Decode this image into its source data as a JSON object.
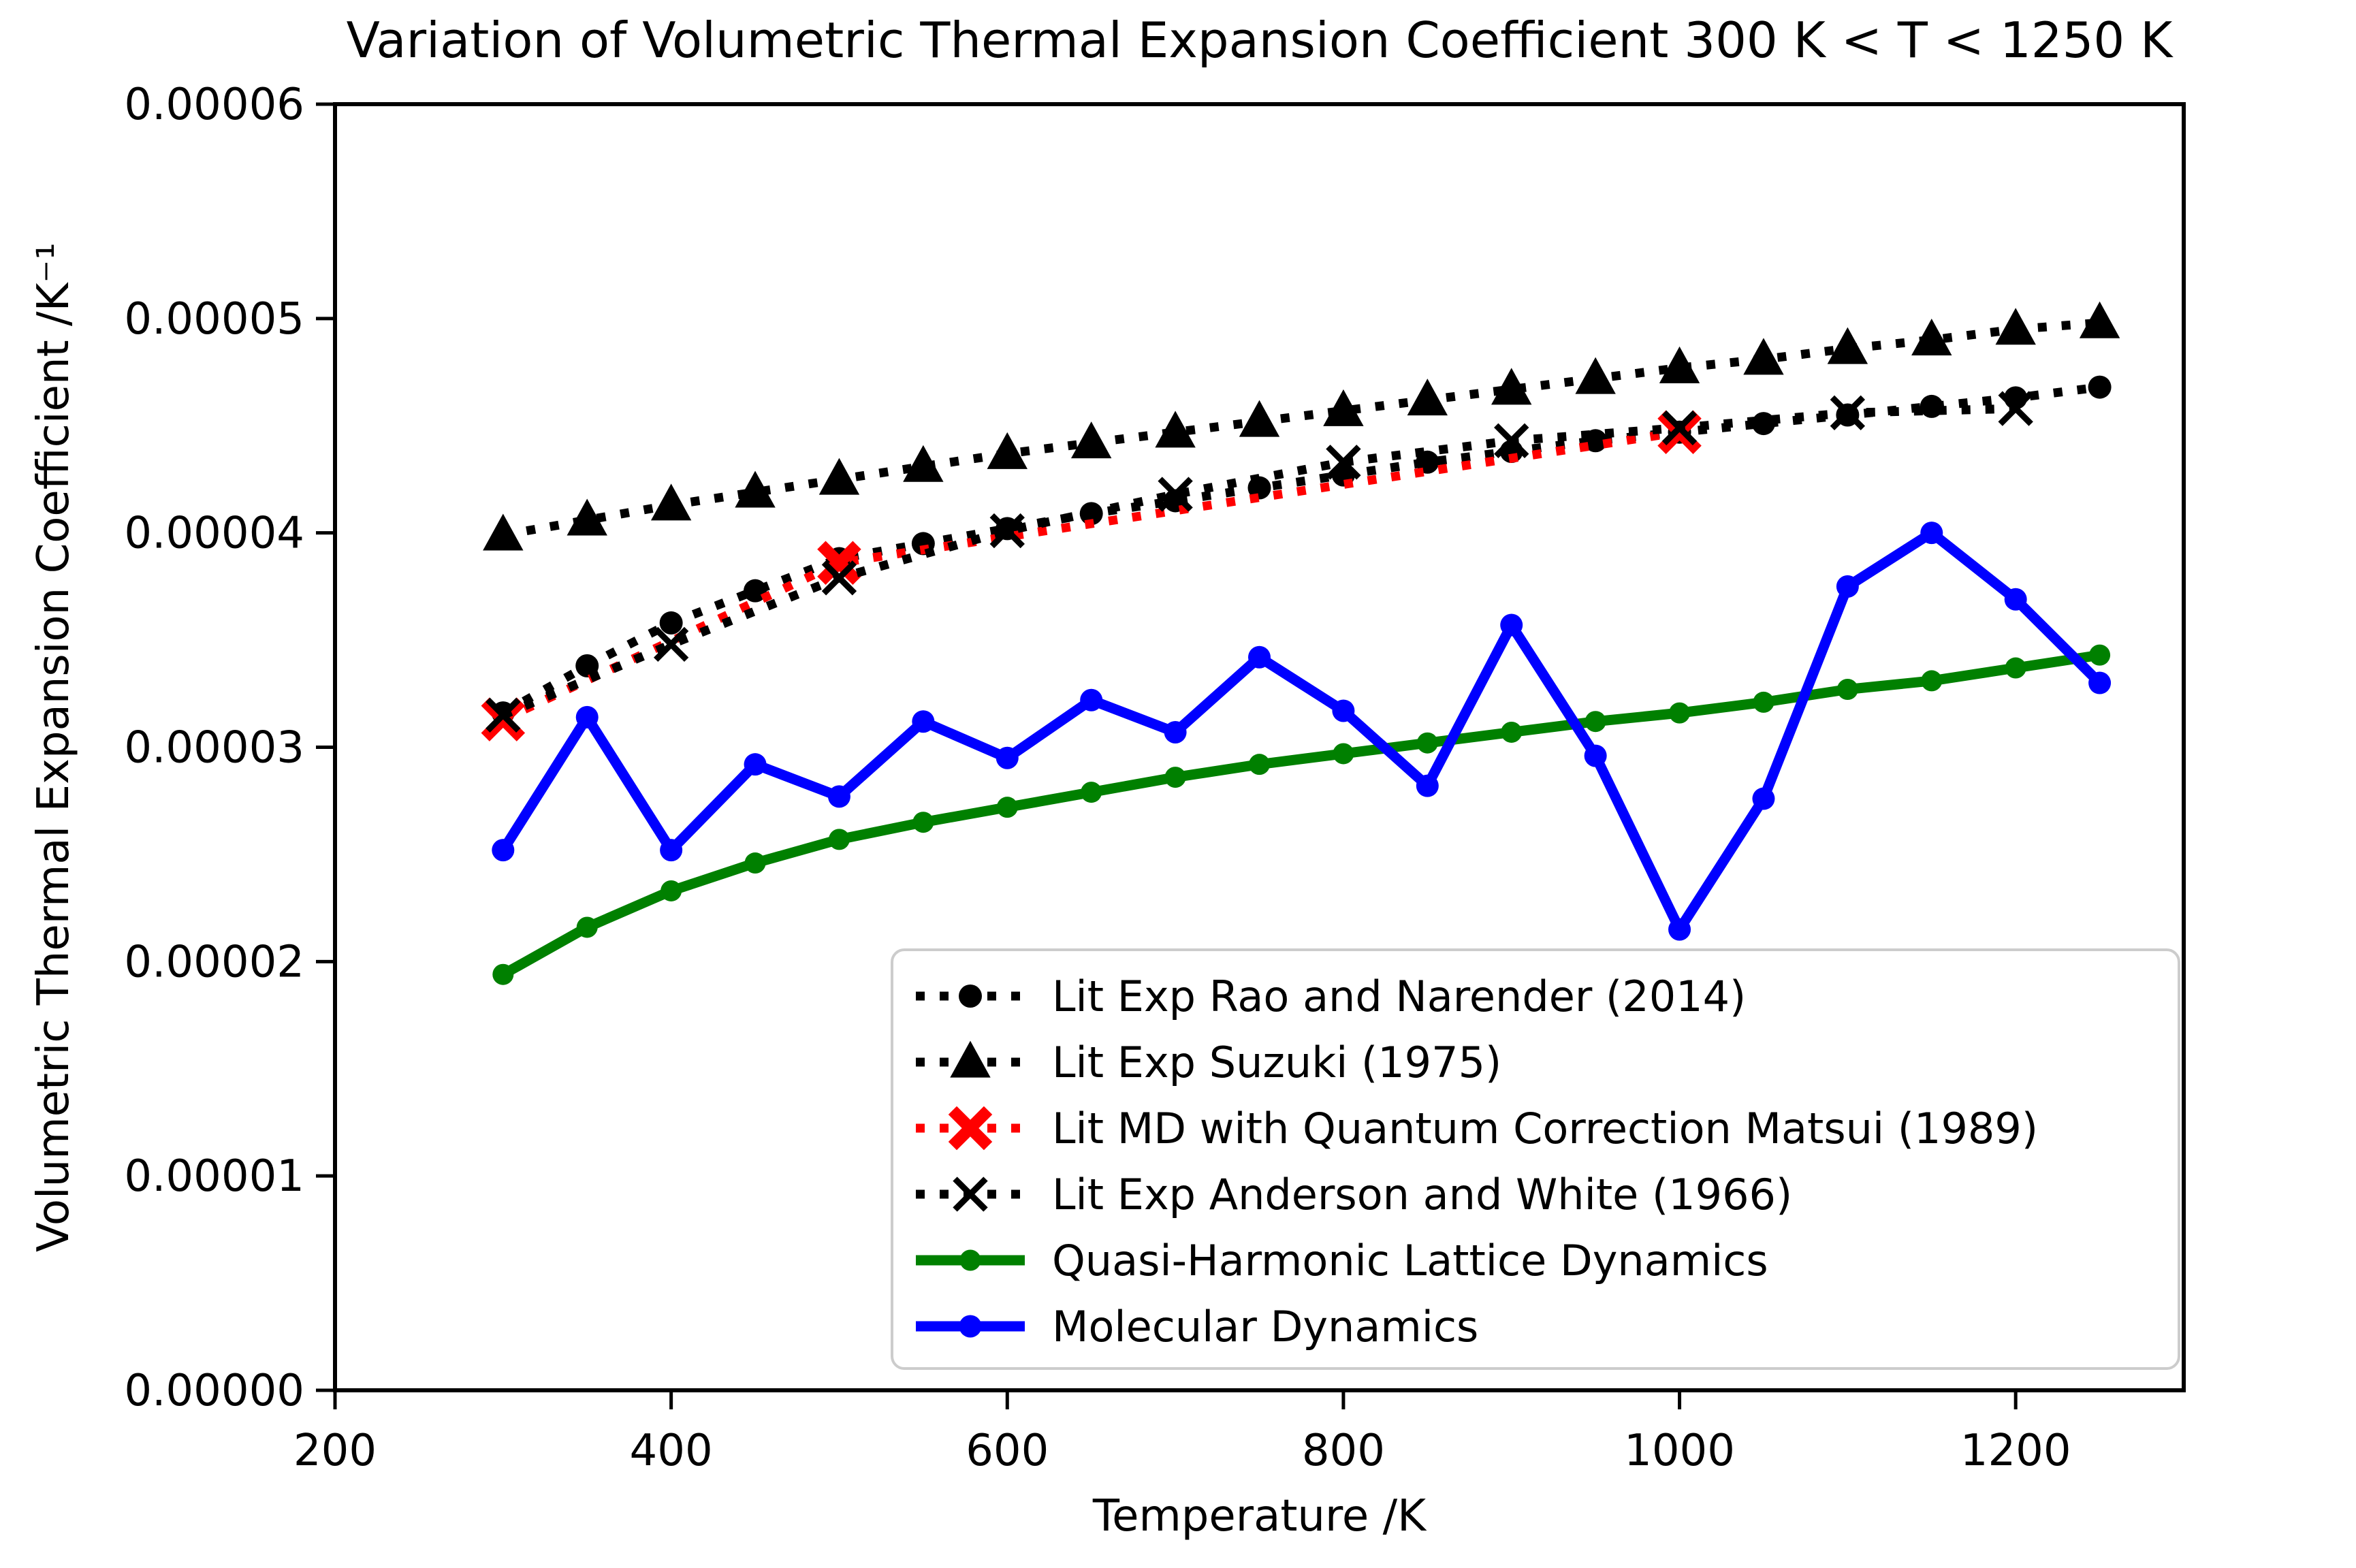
{
  "chart_data": {
    "type": "line",
    "title": "Variation of Volumetric Thermal Expansion Coefficient 300 K < T < 1250 K",
    "xlabel": "Temperature /K",
    "ylabel": "Volumetric Thermal Expansion Coefficient /K⁻¹",
    "xlim": [
      200,
      1300
    ],
    "ylim": [
      0,
      6e-05
    ],
    "xticks": [
      200,
      400,
      600,
      800,
      1000,
      1200
    ],
    "xtick_labels": [
      "200",
      "400",
      "600",
      "800",
      "1000",
      "1200"
    ],
    "yticks": [
      0,
      1e-05,
      2e-05,
      3e-05,
      4e-05,
      5e-05,
      6e-05
    ],
    "ytick_labels": [
      "0.00000",
      "0.00001",
      "0.00002",
      "0.00003",
      "0.00004",
      "0.00005",
      "0.00006"
    ],
    "grid": false,
    "legend_position": "inside lower right",
    "series": [
      {
        "id": "rao",
        "name": "Lit Exp Rao and Narender (2014)",
        "color": "#000000",
        "linestyle": "dotted",
        "marker": "circle",
        "marker_size": 34,
        "x": [
          300,
          350,
          400,
          450,
          500,
          550,
          600,
          650,
          700,
          750,
          800,
          850,
          900,
          950,
          1000,
          1050,
          1100,
          1150,
          1200,
          1250
        ],
        "y": [
          3.16e-05,
          3.38e-05,
          3.58e-05,
          3.73e-05,
          3.88e-05,
          3.95e-05,
          4.02e-05,
          4.09e-05,
          4.15e-05,
          4.21e-05,
          4.27e-05,
          4.33e-05,
          4.38e-05,
          4.43e-05,
          4.47e-05,
          4.51e-05,
          4.55e-05,
          4.59e-05,
          4.63e-05,
          4.68e-05
        ]
      },
      {
        "id": "suzuki",
        "name": "Lit Exp Suzuki (1975)",
        "color": "#000000",
        "linestyle": "dotted",
        "marker": "triangle",
        "marker_size": 54,
        "x": [
          300,
          350,
          400,
          450,
          500,
          550,
          600,
          650,
          700,
          750,
          800,
          850,
          900,
          950,
          1000,
          1050,
          1100,
          1150,
          1200,
          1250
        ],
        "y": [
          3.99e-05,
          4.06e-05,
          4.13e-05,
          4.19e-05,
          4.25e-05,
          4.31e-05,
          4.37e-05,
          4.42e-05,
          4.47e-05,
          4.52e-05,
          4.57e-05,
          4.62e-05,
          4.67e-05,
          4.72e-05,
          4.77e-05,
          4.81e-05,
          4.86e-05,
          4.9e-05,
          4.95e-05,
          4.98e-05
        ]
      },
      {
        "id": "matsui",
        "name": "Lit MD with Quantum Correction Matsui (1989)",
        "color": "#ff0000",
        "linestyle": "dotted",
        "marker": "X",
        "marker_size": 58,
        "x": [
          300,
          500,
          1000
        ],
        "y": [
          3.13e-05,
          3.86e-05,
          4.47e-05
        ]
      },
      {
        "id": "anderson",
        "name": "Lit Exp Anderson and White (1966)",
        "color": "#000000",
        "linestyle": "dotted",
        "marker": "x",
        "marker_size": 50,
        "x": [
          300,
          400,
          500,
          600,
          700,
          800,
          900,
          1000,
          1100,
          1200
        ],
        "y": [
          3.15e-05,
          3.48e-05,
          3.79e-05,
          4.01e-05,
          4.18e-05,
          4.33e-05,
          4.43e-05,
          4.49e-05,
          4.56e-05,
          4.58e-05
        ]
      },
      {
        "id": "qhld",
        "name": "Quasi-Harmonic Lattice Dynamics",
        "color": "#008000",
        "linestyle": "solid",
        "marker": "circle",
        "marker_size": 31,
        "x": [
          300,
          350,
          400,
          450,
          500,
          550,
          600,
          650,
          700,
          750,
          800,
          850,
          900,
          950,
          1000,
          1050,
          1100,
          1150,
          1200,
          1250
        ],
        "y": [
          1.94e-05,
          2.16e-05,
          2.33e-05,
          2.46e-05,
          2.57e-05,
          2.65e-05,
          2.72e-05,
          2.79e-05,
          2.86e-05,
          2.92e-05,
          2.97e-05,
          3.02e-05,
          3.07e-05,
          3.12e-05,
          3.16e-05,
          3.21e-05,
          3.27e-05,
          3.31e-05,
          3.37e-05,
          3.43e-05
        ]
      },
      {
        "id": "md",
        "name": "Molecular Dynamics",
        "color": "#0000ff",
        "linestyle": "solid",
        "marker": "circle",
        "marker_size": 33,
        "x": [
          300,
          350,
          400,
          450,
          500,
          550,
          600,
          650,
          700,
          750,
          800,
          850,
          900,
          950,
          1000,
          1050,
          1100,
          1150,
          1200,
          1250
        ],
        "y": [
          2.52e-05,
          3.14e-05,
          2.52e-05,
          2.92e-05,
          2.77e-05,
          3.12e-05,
          2.95e-05,
          3.22e-05,
          3.07e-05,
          3.42e-05,
          3.17e-05,
          2.82e-05,
          3.57e-05,
          2.96e-05,
          2.15e-05,
          2.76e-05,
          3.75e-05,
          4e-05,
          3.69e-05,
          3.3e-05
        ]
      }
    ]
  }
}
